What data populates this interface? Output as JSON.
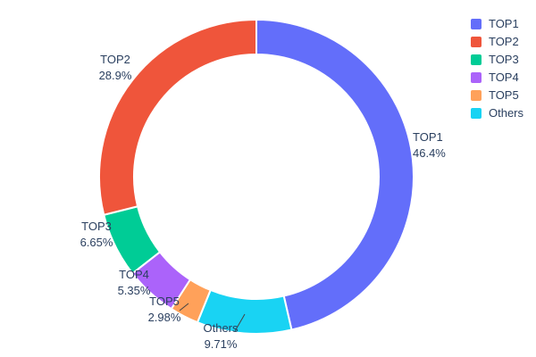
{
  "chart_data": {
    "type": "pie",
    "subtype": "donut",
    "hole": 0.78,
    "title": "",
    "labels": [
      "TOP1",
      "TOP2",
      "TOP3",
      "TOP4",
      "TOP5",
      "Others"
    ],
    "values": [
      46.4,
      28.9,
      6.65,
      5.35,
      2.98,
      9.71
    ],
    "percent_labels": [
      "46.4%",
      "28.9%",
      "6.65%",
      "5.35%",
      "2.98%",
      "9.71%"
    ],
    "colors": [
      "#636EFA",
      "#EF553B",
      "#00CC96",
      "#AB63FA",
      "#FFA15A",
      "#19D3F3"
    ],
    "display_order_clockwise_from_top": [
      0,
      5,
      4,
      3,
      2,
      1
    ],
    "direction": "clockwise",
    "start_angle_deg": 0,
    "legend_position": "top-right",
    "legend_entries": [
      "TOP1",
      "TOP2",
      "TOP3",
      "TOP4",
      "TOP5",
      "Others"
    ],
    "text_color": "#2a3f5f",
    "slice_border_color": "#ffffff",
    "background_color": "#ffffff"
  }
}
